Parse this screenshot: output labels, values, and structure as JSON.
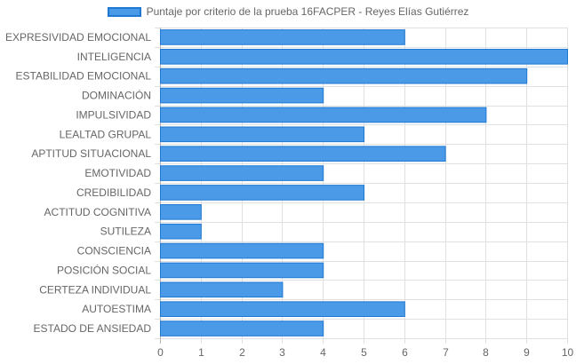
{
  "chart_data": {
    "type": "bar",
    "orientation": "horizontal",
    "categories": [
      "EXPRESIVIDAD EMOCIONAL",
      "INTELIGENCIA",
      "ESTABILIDAD EMOCIONAL",
      "DOMINACIÓN",
      "IMPULSIVIDAD",
      "LEALTAD GRUPAL",
      "APTITUD SITUACIONAL",
      "EMOTIVIDAD",
      "CREDIBILIDAD",
      "ACTITUD COGNITIVA",
      "SUTILEZA",
      "CONSCIENCIA",
      "POSICIÓN SOCIAL",
      "CERTEZA INDIVIDUAL",
      "AUTOESTIMA",
      "ESTADO DE ANSIEDAD"
    ],
    "series": [
      {
        "name": "Puntaje por criterio de la prueba 16FACPER - Reyes Elías Gutiérrez",
        "values": [
          6,
          10,
          9,
          4,
          8,
          5,
          7,
          4,
          5,
          1,
          1,
          4,
          4,
          3,
          6,
          4
        ]
      }
    ],
    "x_ticks": [
      "0",
      "1",
      "2",
      "3",
      "4",
      "5",
      "6",
      "7",
      "8",
      "9",
      "10"
    ],
    "xlim": [
      0,
      10
    ],
    "grid": true,
    "legend_position": "top",
    "colors": {
      "bar_fill": "#4a9ae8",
      "bar_border": "#1f78d1",
      "grid": "#e0e0e0",
      "axis_grid": "#b5b5b5",
      "label": "#666666"
    }
  }
}
